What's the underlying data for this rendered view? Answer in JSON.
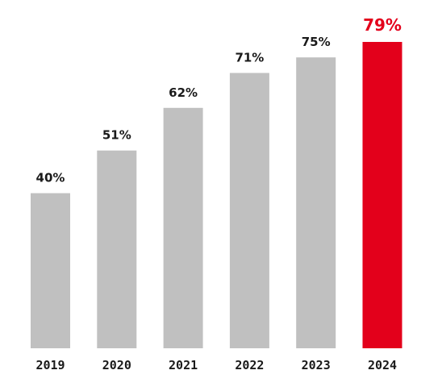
{
  "chart_data": {
    "type": "bar",
    "categories": [
      "2019",
      "2020",
      "2021",
      "2022",
      "2023",
      "2024"
    ],
    "values": [
      40,
      51,
      62,
      71,
      75,
      79
    ],
    "data_labels": [
      "40%",
      "51%",
      "62%",
      "71%",
      "75%",
      "79%"
    ],
    "title": "",
    "xlabel": "",
    "ylabel": "",
    "ylim": [
      0,
      80
    ],
    "grid": false,
    "legend": "none",
    "highlight_index": 5
  },
  "colors": {
    "bar": "#c0c0c0",
    "highlight_bar": "#e3001b",
    "label_text": "#1a1a1a",
    "highlight_text": "#e3001b"
  }
}
